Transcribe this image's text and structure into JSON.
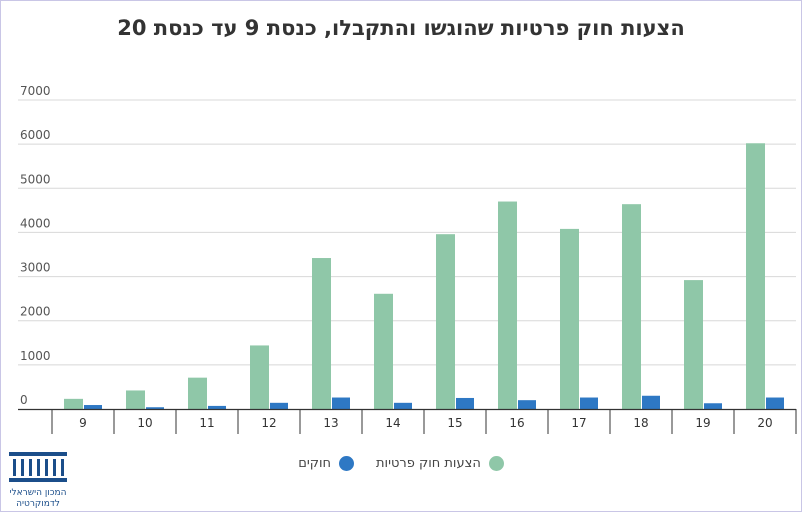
{
  "chart_data": {
    "type": "bar",
    "title": "הצעות חוק פרטיות שהוגשו והתקבלו, כנסת 9 עד כנסת 20",
    "categories": [
      "9",
      "10",
      "11",
      "12",
      "13",
      "14",
      "15",
      "16",
      "17",
      "18",
      "19",
      "20"
    ],
    "series": [
      {
        "name": "הצעות חוק פרטיות",
        "color": "#8fc7a8",
        "values": [
          230,
          420,
          710,
          1440,
          3420,
          2610,
          3960,
          4700,
          4080,
          4640,
          2920,
          6020
        ]
      },
      {
        "name": "חוקים",
        "color": "#2e78c4",
        "values": [
          90,
          40,
          70,
          140,
          260,
          140,
          250,
          200,
          260,
          300,
          130,
          260
        ]
      }
    ],
    "yticks": [
      0,
      1000,
      2000,
      3000,
      4000,
      5000,
      6000,
      7000
    ],
    "ylim": [
      0,
      7000
    ],
    "grid": true,
    "legend_position": "bottom-center"
  },
  "logo": {
    "icon": "institute-columns-logo",
    "line1": "המכון הישראלי",
    "line2": "לדמוקרטיה"
  }
}
